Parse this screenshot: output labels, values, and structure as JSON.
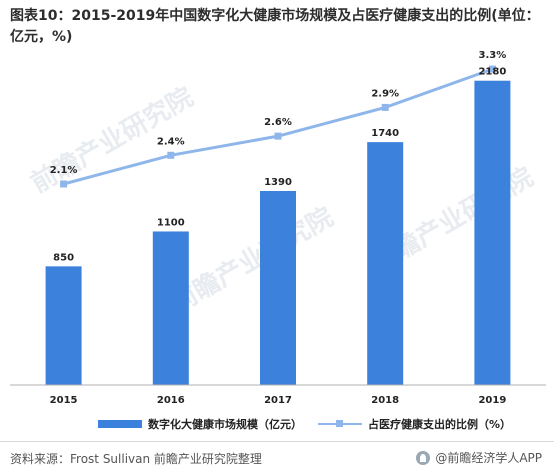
{
  "title": "图表10：2015-2019年中国数字化大健康市场规模及占医疗健康支出的比例(单位：亿元，%)",
  "colors": {
    "bar": "#3c82dc",
    "line": "#8fb6ea",
    "axis": "#b0b0b0",
    "text": "#222222"
  },
  "chart_data": {
    "type": "bar",
    "categories": [
      "2015",
      "2016",
      "2017",
      "2018",
      "2019"
    ],
    "series": [
      {
        "name": "数字化大健康市场规模（亿元）",
        "type": "bar",
        "axis": "left",
        "values": [
          850,
          1100,
          1390,
          1740,
          2180
        ],
        "labels": [
          "850",
          "1100",
          "1390",
          "1740",
          "2180"
        ]
      },
      {
        "name": "占医疗健康支出的比例（%）",
        "type": "line",
        "axis": "right",
        "values": [
          2.1,
          2.4,
          2.6,
          2.9,
          3.3
        ],
        "labels": [
          "2.1%",
          "2.4%",
          "2.6%",
          "2.9%",
          "3.3%"
        ]
      }
    ],
    "ylim_left": [
      0,
      2400
    ],
    "ylim_right": [
      0,
      3.5
    ],
    "grid": false,
    "legend_position": "bottom"
  },
  "legend": {
    "bar_label": "数字化大健康市场规模（亿元）",
    "line_label": "占医疗健康支出的比例（%）"
  },
  "footer": {
    "source": "资料来源：Frost Sullivan 前瞻产业研究院整理",
    "brand": "@前瞻经济学人APP"
  },
  "watermarks": [
    "前瞻产业研究院",
    "前瞻产业研究院",
    "前瞻产业研究院"
  ]
}
